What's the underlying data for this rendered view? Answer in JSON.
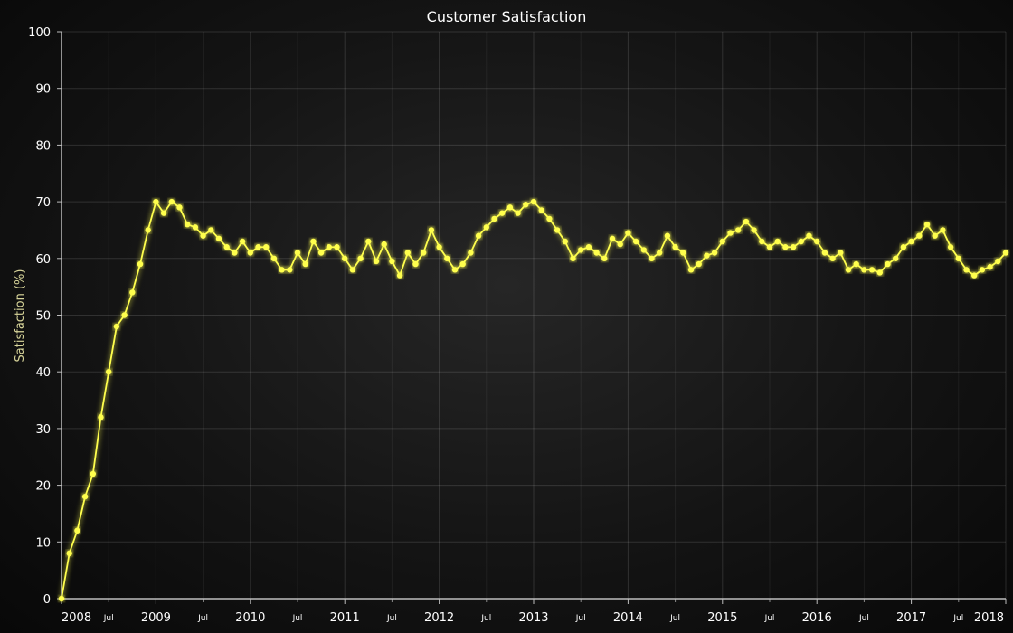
{
  "chart_data": {
    "type": "line",
    "title": "Customer Satisfaction",
    "xlabel": "",
    "ylabel": "Satisfaction (%)",
    "ylim": [
      0,
      100
    ],
    "yticks": [
      0,
      10,
      20,
      30,
      40,
      50,
      60,
      70,
      80,
      90,
      100
    ],
    "xlim": [
      "2008-01",
      "2018-01"
    ],
    "xticks_major": [
      "2008",
      "2009",
      "2010",
      "2011",
      "2012",
      "2013",
      "2014",
      "2015",
      "2016",
      "2017",
      "2018"
    ],
    "xtick_minor_label": "Jul",
    "grid": true,
    "legend": "none",
    "line_color": "#ffff4d",
    "x_start": "2008-01",
    "x_step": "1 month",
    "series": [
      {
        "values": [
          0,
          8,
          12,
          18,
          22,
          32,
          40,
          48,
          50,
          54,
          59,
          65,
          70,
          68,
          70,
          69,
          66,
          65.5,
          64,
          65,
          63.5,
          62,
          61,
          63,
          61,
          62,
          62,
          60,
          58,
          58,
          61,
          59,
          63,
          61,
          62,
          62,
          60,
          58,
          60,
          63,
          59.5,
          62.5,
          59.5,
          57,
          61,
          59,
          61,
          65,
          62,
          60,
          58,
          59,
          61,
          64,
          65.5,
          67,
          68,
          69,
          68,
          69.5,
          70,
          68.5,
          67,
          65,
          63,
          60,
          61.5,
          62,
          61,
          60,
          63.5,
          62.5,
          64.5,
          63,
          61.5,
          60,
          61,
          64,
          62,
          61,
          58,
          59,
          60.5,
          61,
          63,
          64.5,
          65,
          66.5,
          65,
          63,
          62,
          63,
          62,
          62,
          63,
          64,
          63,
          61,
          60,
          61,
          58,
          59,
          58,
          58,
          57.5,
          59,
          60,
          62,
          63,
          64,
          66,
          64,
          65,
          62,
          60,
          58,
          57,
          58,
          58.5,
          59.5,
          61
        ]
      }
    ]
  }
}
